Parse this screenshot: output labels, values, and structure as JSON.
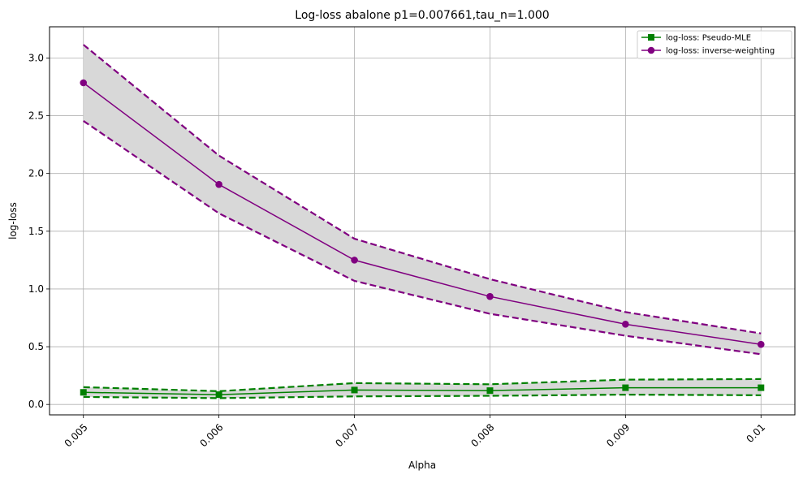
{
  "chart_data": {
    "type": "line",
    "title": "Log-loss abalone p1=0.007661,tau_n=1.000",
    "xlabel": "Alpha",
    "ylabel": "log-loss",
    "x": [
      0.005,
      0.006,
      0.007,
      0.008,
      0.009,
      0.01
    ],
    "x_tick_labels": [
      "0.005",
      "0.006",
      "0.007",
      "0.008",
      "0.009",
      "0.01"
    ],
    "y_ticks": [
      0.0,
      0.5,
      1.0,
      1.5,
      2.0,
      2.5,
      3.0
    ],
    "y_tick_labels": [
      "0.0",
      "0.5",
      "1.0",
      "1.5",
      "2.0",
      "2.5",
      "3.0"
    ],
    "xlim": [
      0.00475,
      0.01025
    ],
    "ylim": [
      -0.09,
      3.27
    ],
    "grid": true,
    "legend_position": "upper right",
    "band_color": "#d8d8d8",
    "series": [
      {
        "name": "log-loss: Pseudo-MLE",
        "color": "#008000",
        "marker": "square",
        "values": [
          0.105,
          0.085,
          0.125,
          0.12,
          0.145,
          0.145
        ],
        "upper": [
          0.15,
          0.115,
          0.185,
          0.175,
          0.215,
          0.22
        ],
        "lower": [
          0.065,
          0.055,
          0.07,
          0.075,
          0.085,
          0.08
        ]
      },
      {
        "name": "log-loss: inverse-weighting",
        "color": "#800080",
        "marker": "circle",
        "values": [
          2.785,
          1.905,
          1.25,
          0.935,
          0.695,
          0.52
        ],
        "upper": [
          3.115,
          2.155,
          1.435,
          1.085,
          0.8,
          0.615
        ],
        "lower": [
          2.455,
          1.655,
          1.07,
          0.785,
          0.595,
          0.435
        ]
      }
    ]
  }
}
